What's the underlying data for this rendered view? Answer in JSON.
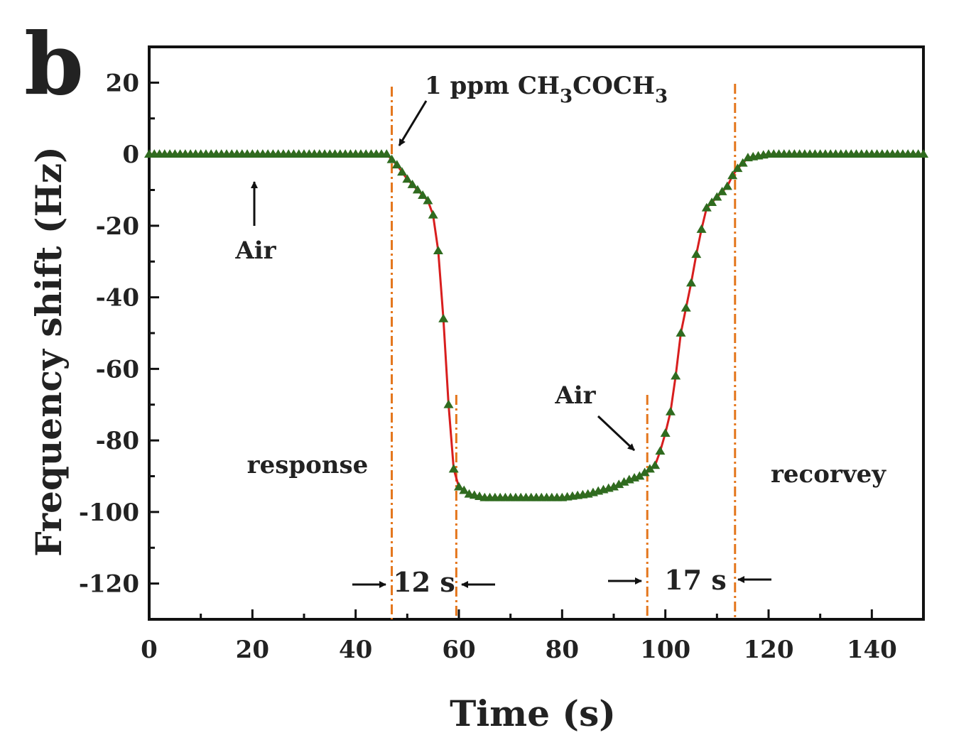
{
  "panel_label": "b",
  "chart_data": {
    "type": "line",
    "xlabel": "Time (s)",
    "ylabel": "Frequency shift (Hz)",
    "xlim": [
      0,
      150
    ],
    "ylim": [
      -130,
      30
    ],
    "xticks": [
      0,
      20,
      40,
      60,
      80,
      100,
      120,
      140
    ],
    "yticks": [
      20,
      0,
      -20,
      -40,
      -60,
      -80,
      -100,
      -120
    ],
    "grid": false,
    "series": [
      {
        "marker": "triangle",
        "marker_color": "#2f6b1f",
        "line_color": "#d81e1e",
        "x": [
          0,
          10,
          20,
          30,
          40,
          46,
          48,
          50,
          52,
          54,
          55,
          56,
          57,
          58,
          59,
          60,
          62,
          65,
          70,
          75,
          80,
          85,
          90,
          93,
          95,
          96,
          98,
          99,
          100,
          101,
          102,
          103,
          104,
          105,
          106,
          107,
          108,
          110,
          112,
          113,
          114,
          116,
          120,
          130,
          140,
          150
        ],
        "y": [
          0,
          0,
          0,
          0,
          0,
          0,
          -3,
          -7,
          -10,
          -13,
          -17,
          -27,
          -46,
          -70,
          -88,
          -93,
          -95,
          -96,
          -96,
          -96,
          -96,
          -95,
          -93,
          -91,
          -90,
          -89,
          -87,
          -83,
          -78,
          -72,
          -62,
          -50,
          -43,
          -36,
          -28,
          -21,
          -15,
          -12,
          -9,
          -6,
          -4,
          -1,
          0,
          0,
          0,
          0
        ]
      }
    ],
    "event_lines": [
      47,
      59.5,
      96.5,
      113.5
    ],
    "annotations": {
      "gas_on": "1 ppm CH",
      "gas_on_sub": "3",
      "gas_on_mid": "COCH",
      "gas_on_sub2": "3",
      "air_start": "Air",
      "air_off": "Air",
      "response": "response",
      "recovery": "recorvey",
      "response_time": "12 s",
      "recovery_time": "17 s"
    }
  }
}
